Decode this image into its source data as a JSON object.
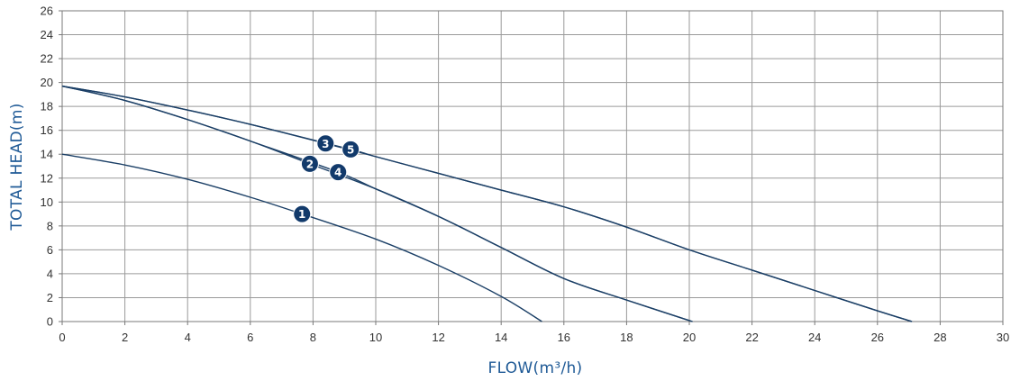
{
  "chart_data": {
    "type": "line",
    "xlabel": "FLOW(m³/h)",
    "ylabel": "TOTAL HEAD(m)",
    "xlim": [
      0,
      30
    ],
    "ylim": [
      0,
      26
    ],
    "x_ticks": [
      0,
      2,
      4,
      6,
      8,
      10,
      12,
      14,
      16,
      18,
      20,
      22,
      24,
      26,
      28,
      30
    ],
    "y_ticks": [
      0,
      2,
      4,
      6,
      8,
      10,
      12,
      14,
      16,
      18,
      20,
      22,
      24,
      26
    ],
    "grid": true,
    "colors": {
      "curve": "#1b3f66",
      "marker": "#123a6b",
      "axis_title": "#1f5a96"
    },
    "series": [
      {
        "label": "1",
        "x": [
          0,
          2,
          4,
          6,
          7.65,
          10,
          12,
          14,
          15.3
        ],
        "y": [
          14,
          13.1,
          11.9,
          10.4,
          9.0,
          6.9,
          4.7,
          2.1,
          0
        ],
        "label_at": [
          7.65,
          9.0
        ]
      },
      {
        "label": "2",
        "x": [
          0,
          2,
          4,
          6,
          7.9,
          10,
          12,
          14,
          16,
          18,
          20.1
        ],
        "y": [
          19.7,
          18.5,
          16.9,
          15.1,
          13.2,
          11.1,
          8.8,
          6.2,
          3.6,
          1.8,
          0
        ],
        "label_at": [
          7.9,
          13.2
        ]
      },
      {
        "label": "3",
        "x": [
          0,
          2,
          4,
          6,
          8.4,
          10,
          12,
          14,
          16,
          18,
          20,
          22,
          24,
          26,
          27.1
        ],
        "y": [
          19.7,
          18.8,
          17.7,
          16.5,
          14.9,
          13.8,
          12.4,
          11.0,
          9.6,
          7.9,
          6.0,
          4.3,
          2.6,
          0.9,
          0
        ],
        "label_at": [
          8.4,
          14.9
        ]
      },
      {
        "label": "4",
        "x": [
          0,
          2,
          4,
          6,
          8.8,
          10,
          12,
          14,
          16,
          18,
          20.1
        ],
        "y": [
          19.7,
          18.5,
          16.9,
          15.1,
          12.5,
          11.1,
          8.8,
          6.2,
          3.6,
          1.8,
          0
        ],
        "label_at": [
          8.8,
          12.5
        ]
      },
      {
        "label": "5",
        "x": [
          0,
          2,
          4,
          6,
          9.2,
          10,
          12,
          14,
          16,
          18,
          20,
          22,
          24,
          26,
          27.1
        ],
        "y": [
          19.7,
          18.8,
          17.7,
          16.5,
          14.4,
          13.8,
          12.4,
          11.0,
          9.6,
          7.9,
          6.0,
          4.3,
          2.6,
          0.9,
          0
        ],
        "label_at": [
          9.2,
          14.4
        ]
      }
    ]
  }
}
